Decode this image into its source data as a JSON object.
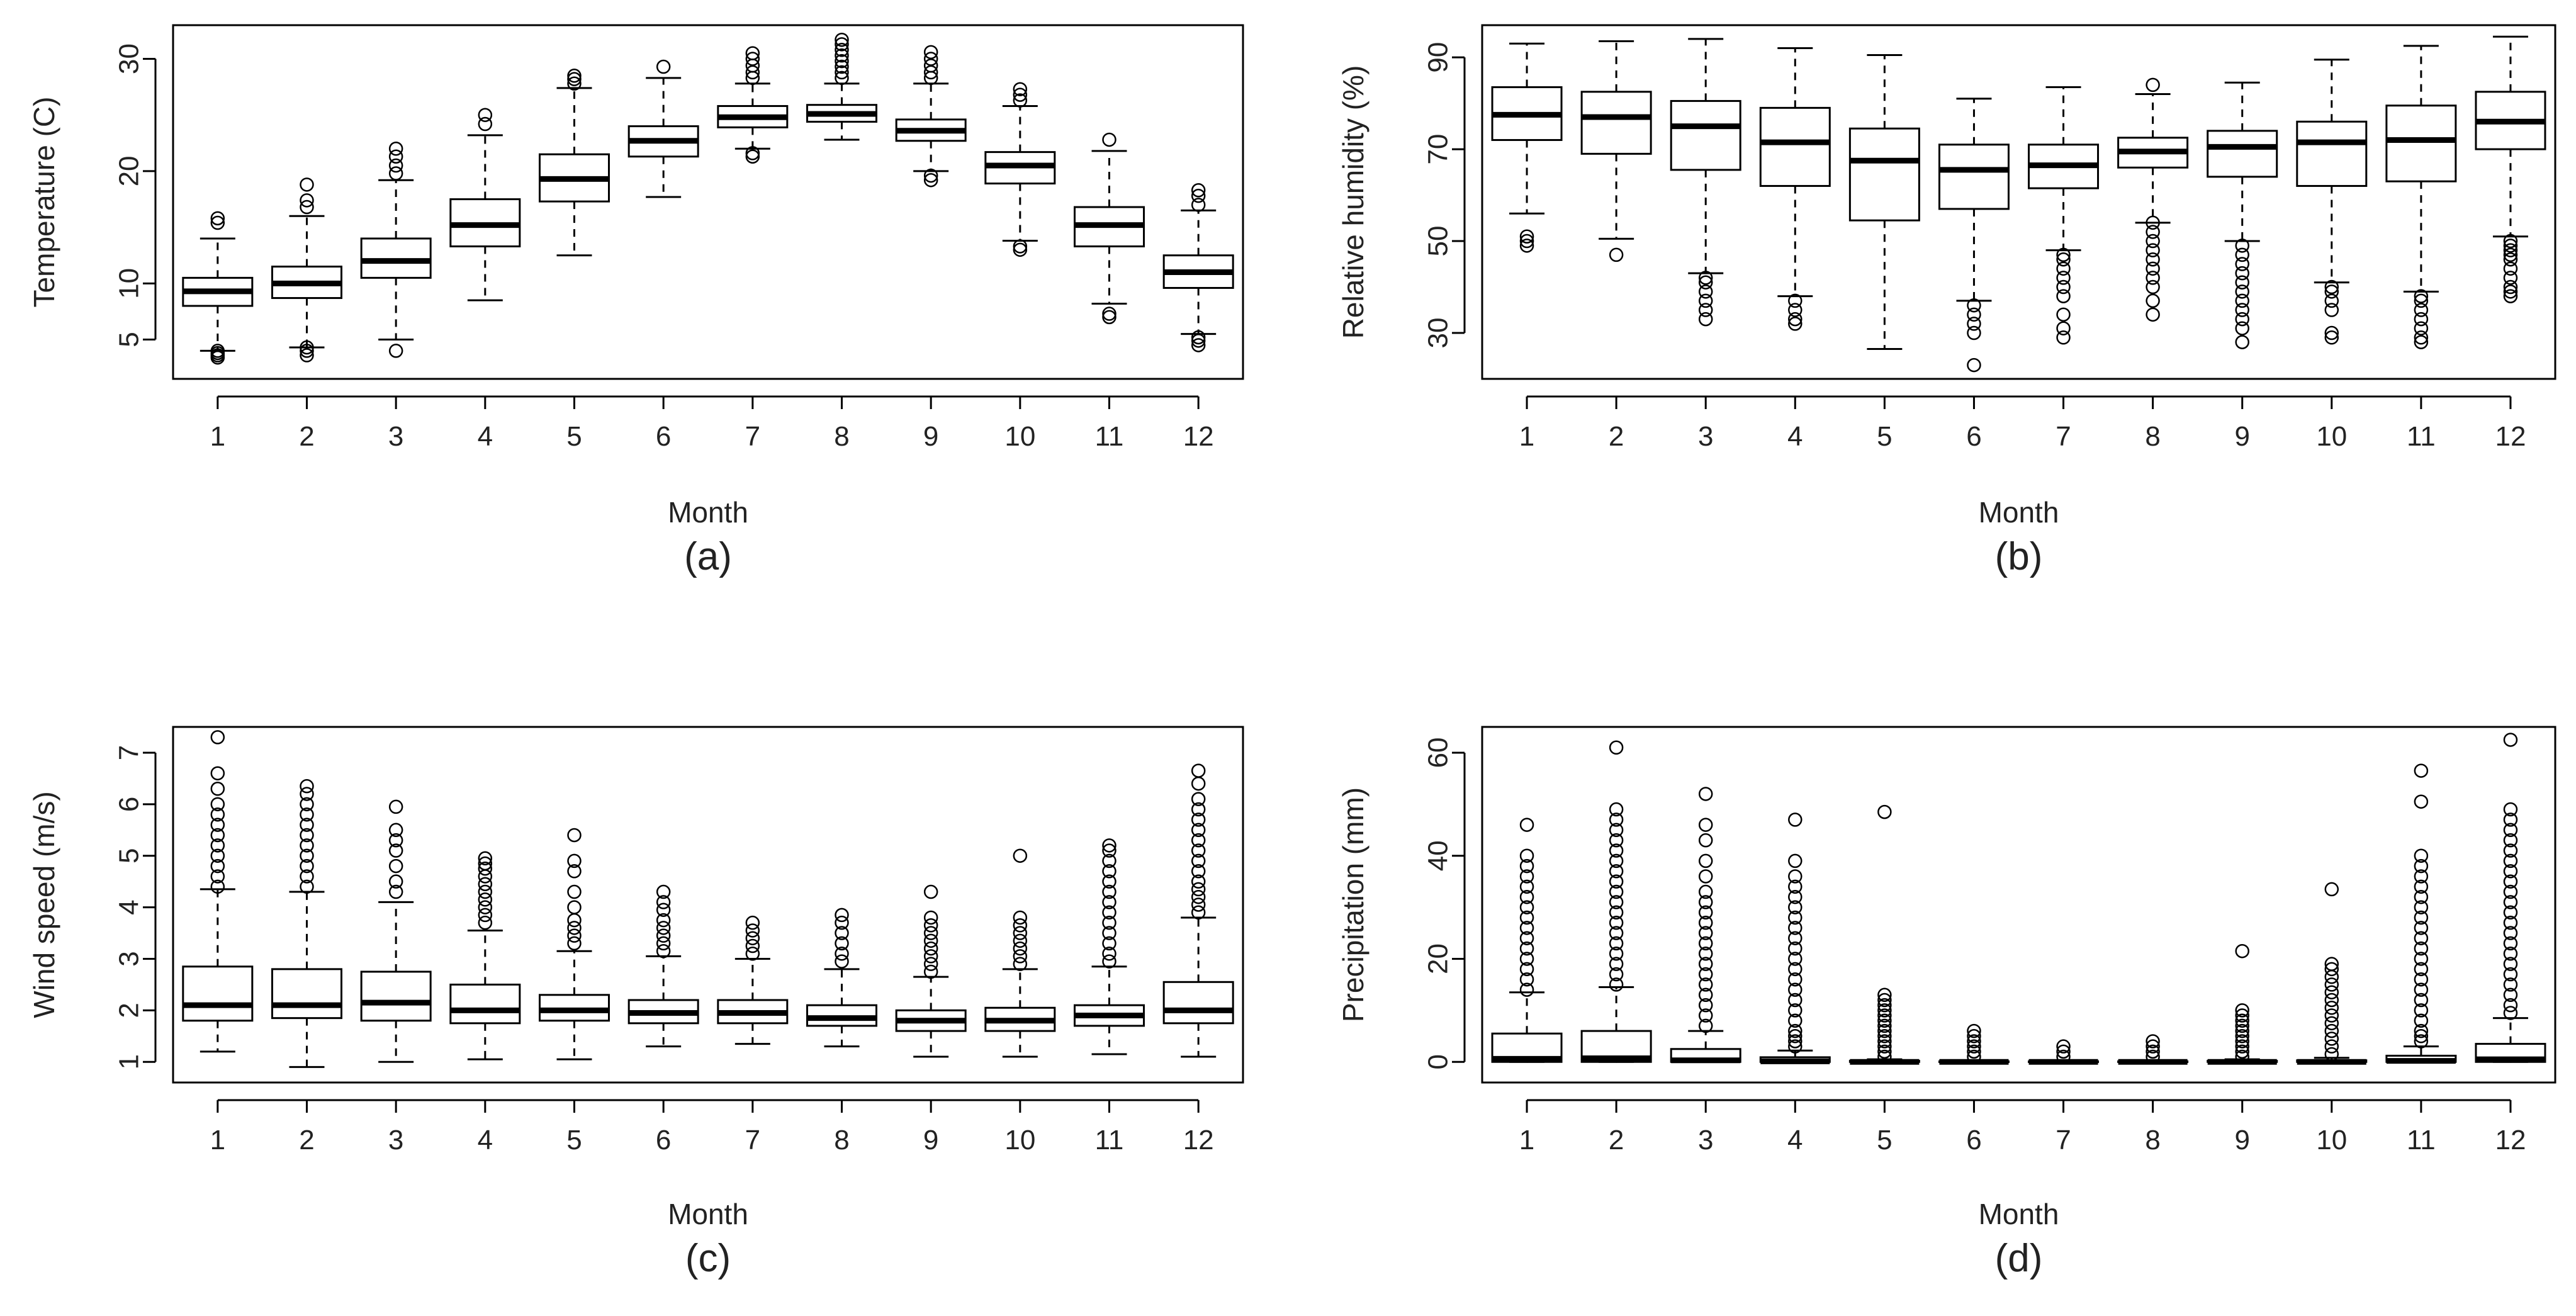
{
  "figure": {
    "months": [
      "1",
      "2",
      "3",
      "4",
      "5",
      "6",
      "7",
      "8",
      "9",
      "10",
      "11",
      "12"
    ]
  },
  "chart_data": [
    {
      "id": "a",
      "type": "boxplot",
      "panel_label": "(a)",
      "xlabel": "Month",
      "ylabel": "Temperature (C)",
      "ylim": [
        1.5,
        33
      ],
      "yticks": [
        5,
        10,
        20,
        30
      ],
      "categories": [
        "1",
        "2",
        "3",
        "4",
        "5",
        "6",
        "7",
        "8",
        "9",
        "10",
        "11",
        "12"
      ],
      "series": [
        {
          "q1": 8.0,
          "median": 9.3,
          "q3": 10.5,
          "whisker_low": 4.0,
          "whisker_high": 14.0,
          "outliers": [
            3.4,
            3.6,
            3.8,
            4.0,
            15.4,
            15.8
          ]
        },
        {
          "q1": 8.7,
          "median": 10.0,
          "q3": 11.5,
          "whisker_low": 4.3,
          "whisker_high": 16.0,
          "outliers": [
            3.6,
            4.0,
            4.3,
            16.8,
            17.4,
            18.8
          ]
        },
        {
          "q1": 10.5,
          "median": 12.0,
          "q3": 14.0,
          "whisker_low": 5.0,
          "whisker_high": 19.2,
          "outliers": [
            4.0,
            19.8,
            20.5,
            21.3,
            22.0
          ]
        },
        {
          "q1": 13.3,
          "median": 15.2,
          "q3": 17.5,
          "whisker_low": 8.5,
          "whisker_high": 23.2,
          "outliers": [
            24.2,
            25.0
          ]
        },
        {
          "q1": 17.3,
          "median": 19.3,
          "q3": 21.5,
          "whisker_low": 12.5,
          "whisker_high": 27.4,
          "outliers": [
            27.8,
            28.2,
            28.5
          ]
        },
        {
          "q1": 21.3,
          "median": 22.7,
          "q3": 24.0,
          "whisker_low": 17.7,
          "whisker_high": 28.3,
          "outliers": [
            29.3
          ]
        },
        {
          "q1": 23.9,
          "median": 24.8,
          "q3": 25.8,
          "whisker_low": 22.0,
          "whisker_high": 27.8,
          "outliers": [
            21.3,
            21.6,
            28.3,
            28.8,
            29.4,
            30.0,
            30.5
          ]
        },
        {
          "q1": 24.4,
          "median": 25.1,
          "q3": 25.9,
          "whisker_low": 22.8,
          "whisker_high": 27.8,
          "outliers": [
            28.3,
            28.8,
            29.3,
            29.8,
            30.3,
            30.8,
            31.3,
            31.7
          ]
        },
        {
          "q1": 22.7,
          "median": 23.6,
          "q3": 24.6,
          "whisker_low": 20.0,
          "whisker_high": 27.8,
          "outliers": [
            19.2,
            19.6,
            28.3,
            28.8,
            29.4,
            30.0,
            30.6
          ]
        },
        {
          "q1": 18.9,
          "median": 20.5,
          "q3": 21.7,
          "whisker_low": 13.8,
          "whisker_high": 25.8,
          "outliers": [
            13.0,
            13.3,
            26.3,
            26.8,
            27.3
          ]
        },
        {
          "q1": 13.3,
          "median": 15.2,
          "q3": 16.8,
          "whisker_low": 8.2,
          "whisker_high": 21.8,
          "outliers": [
            7.0,
            7.3,
            22.8
          ]
        },
        {
          "q1": 9.6,
          "median": 11.0,
          "q3": 12.5,
          "whisker_low": 5.5,
          "whisker_high": 16.5,
          "outliers": [
            4.5,
            4.9,
            5.2,
            17.0,
            17.8,
            18.3
          ]
        }
      ]
    },
    {
      "id": "b",
      "type": "boxplot",
      "panel_label": "(b)",
      "xlabel": "Month",
      "ylabel": "Relative humidity (%)",
      "ylim": [
        20,
        97
      ],
      "yticks": [
        30,
        50,
        70,
        90
      ],
      "categories": [
        "1",
        "2",
        "3",
        "4",
        "5",
        "6",
        "7",
        "8",
        "9",
        "10",
        "11",
        "12"
      ],
      "series": [
        {
          "q1": 72,
          "median": 77.5,
          "q3": 83.5,
          "whisker_low": 56,
          "whisker_high": 93,
          "outliers": [
            49,
            50,
            51
          ]
        },
        {
          "q1": 69,
          "median": 77,
          "q3": 82.5,
          "whisker_low": 50.5,
          "whisker_high": 93.5,
          "outliers": [
            47
          ]
        },
        {
          "q1": 65.5,
          "median": 75,
          "q3": 80.5,
          "whisker_low": 43,
          "whisker_high": 94,
          "outliers": [
            33,
            35,
            37,
            39,
            41,
            42
          ]
        },
        {
          "q1": 62,
          "median": 71.5,
          "q3": 79,
          "whisker_low": 38,
          "whisker_high": 92,
          "outliers": [
            32,
            33,
            35,
            37
          ]
        },
        {
          "q1": 54.5,
          "median": 67.5,
          "q3": 74.5,
          "whisker_low": 26.5,
          "whisker_high": 90.5,
          "outliers": []
        },
        {
          "q1": 57,
          "median": 65.5,
          "q3": 71,
          "whisker_low": 37,
          "whisker_high": 81,
          "outliers": [
            23,
            30,
            32,
            34,
            36
          ]
        },
        {
          "q1": 61.5,
          "median": 66.5,
          "q3": 71,
          "whisker_low": 48,
          "whisker_high": 83.5,
          "outliers": [
            29,
            31,
            34,
            38,
            40,
            42,
            44,
            46,
            47
          ]
        },
        {
          "q1": 66,
          "median": 69.5,
          "q3": 72.5,
          "whisker_low": 54,
          "whisker_high": 82,
          "outliers": [
            34,
            37,
            40,
            42,
            44,
            46,
            48,
            50,
            52,
            54,
            84
          ]
        },
        {
          "q1": 64,
          "median": 70.5,
          "q3": 74,
          "whisker_low": 50,
          "whisker_high": 84.5,
          "outliers": [
            28,
            31,
            33,
            35,
            37,
            39,
            41,
            43,
            45,
            47,
            49
          ]
        },
        {
          "q1": 62,
          "median": 71.5,
          "q3": 76,
          "whisker_low": 41,
          "whisker_high": 89.5,
          "outliers": [
            29,
            30,
            35,
            37,
            39,
            40
          ]
        },
        {
          "q1": 63,
          "median": 72,
          "q3": 79.5,
          "whisker_low": 39,
          "whisker_high": 92.5,
          "outliers": [
            28,
            29,
            31,
            33,
            35,
            37,
            38
          ]
        },
        {
          "q1": 70,
          "median": 76,
          "q3": 82.5,
          "whisker_low": 51,
          "whisker_high": 94.5,
          "outliers": [
            38,
            39,
            40,
            42,
            44,
            46,
            47,
            48,
            49,
            50
          ]
        }
      ]
    },
    {
      "id": "c",
      "type": "boxplot",
      "panel_label": "(c)",
      "xlabel": "Month",
      "ylabel": "Wind speed (m/s)",
      "ylim": [
        0.6,
        7.5
      ],
      "yticks": [
        1,
        2,
        3,
        4,
        5,
        6,
        7
      ],
      "categories": [
        "1",
        "2",
        "3",
        "4",
        "5",
        "6",
        "7",
        "8",
        "9",
        "10",
        "11",
        "12"
      ],
      "series": [
        {
          "q1": 1.8,
          "median": 2.1,
          "q3": 2.85,
          "whisker_low": 1.2,
          "whisker_high": 4.35,
          "outliers": [
            4.4,
            4.6,
            4.8,
            5.0,
            5.2,
            5.4,
            5.6,
            5.8,
            6.0,
            6.3,
            6.6,
            7.3
          ]
        },
        {
          "q1": 1.85,
          "median": 2.1,
          "q3": 2.8,
          "whisker_low": 0.9,
          "whisker_high": 4.3,
          "outliers": [
            4.4,
            4.6,
            4.8,
            5.0,
            5.2,
            5.4,
            5.6,
            5.8,
            6.0,
            6.2,
            6.35
          ]
        },
        {
          "q1": 1.8,
          "median": 2.15,
          "q3": 2.75,
          "whisker_low": 1.0,
          "whisker_high": 4.1,
          "outliers": [
            4.3,
            4.5,
            4.8,
            5.1,
            5.3,
            5.5,
            5.95
          ]
        },
        {
          "q1": 1.75,
          "median": 2.0,
          "q3": 2.5,
          "whisker_low": 1.05,
          "whisker_high": 3.55,
          "outliers": [
            3.7,
            3.85,
            4.0,
            4.15,
            4.3,
            4.45,
            4.6,
            4.75,
            4.85,
            4.95
          ]
        },
        {
          "q1": 1.8,
          "median": 2.0,
          "q3": 2.3,
          "whisker_low": 1.05,
          "whisker_high": 3.15,
          "outliers": [
            3.3,
            3.45,
            3.6,
            3.75,
            4.0,
            4.3,
            4.7,
            4.9,
            5.4
          ]
        },
        {
          "q1": 1.75,
          "median": 1.95,
          "q3": 2.2,
          "whisker_low": 1.3,
          "whisker_high": 3.05,
          "outliers": [
            3.15,
            3.3,
            3.45,
            3.6,
            3.75,
            3.95,
            4.1,
            4.3
          ]
        },
        {
          "q1": 1.75,
          "median": 1.95,
          "q3": 2.2,
          "whisker_low": 1.35,
          "whisker_high": 3.0,
          "outliers": [
            3.1,
            3.25,
            3.4,
            3.55,
            3.7
          ]
        },
        {
          "q1": 1.7,
          "median": 1.85,
          "q3": 2.1,
          "whisker_low": 1.3,
          "whisker_high": 2.8,
          "outliers": [
            2.95,
            3.1,
            3.3,
            3.5,
            3.7,
            3.85
          ]
        },
        {
          "q1": 1.6,
          "median": 1.8,
          "q3": 2.0,
          "whisker_low": 1.1,
          "whisker_high": 2.65,
          "outliers": [
            2.75,
            2.9,
            3.05,
            3.2,
            3.35,
            3.5,
            3.65,
            3.8,
            4.3
          ]
        },
        {
          "q1": 1.6,
          "median": 1.8,
          "q3": 2.05,
          "whisker_low": 1.1,
          "whisker_high": 2.8,
          "outliers": [
            2.9,
            3.05,
            3.2,
            3.35,
            3.5,
            3.65,
            3.8,
            5.0
          ]
        },
        {
          "q1": 1.7,
          "median": 1.9,
          "q3": 2.1,
          "whisker_low": 1.15,
          "whisker_high": 2.85,
          "outliers": [
            2.95,
            3.1,
            3.3,
            3.5,
            3.7,
            3.9,
            4.1,
            4.3,
            4.5,
            4.7,
            4.9,
            5.1,
            5.2
          ]
        },
        {
          "q1": 1.75,
          "median": 2.0,
          "q3": 2.55,
          "whisker_low": 1.1,
          "whisker_high": 3.8,
          "outliers": [
            3.9,
            4.05,
            4.2,
            4.35,
            4.5,
            4.7,
            4.9,
            5.1,
            5.3,
            5.5,
            5.7,
            5.9,
            6.1,
            6.4,
            6.65
          ]
        }
      ]
    },
    {
      "id": "d",
      "type": "boxplot",
      "panel_label": "(d)",
      "xlabel": "Month",
      "ylabel": "Precipitation (mm)",
      "ylim": [
        -4,
        65
      ],
      "yticks": [
        0,
        20,
        40,
        60
      ],
      "categories": [
        "1",
        "2",
        "3",
        "4",
        "5",
        "6",
        "7",
        "8",
        "9",
        "10",
        "11",
        "12"
      ],
      "series": [
        {
          "q1": 0,
          "median": 0.6,
          "q3": 5.5,
          "whisker_low": 0,
          "whisker_high": 13.5,
          "outliers": [
            14,
            16,
            18,
            20,
            22,
            24,
            26,
            28,
            30,
            32,
            34,
            36,
            38,
            40,
            46
          ]
        },
        {
          "q1": 0,
          "median": 0.7,
          "q3": 6.0,
          "whisker_low": 0,
          "whisker_high": 14.5,
          "outliers": [
            15,
            17,
            19,
            21,
            23,
            25,
            27,
            29,
            31,
            33,
            35,
            37,
            39,
            41,
            43,
            45,
            47,
            49,
            61
          ]
        },
        {
          "q1": 0,
          "median": 0.3,
          "q3": 2.5,
          "whisker_low": 0,
          "whisker_high": 6.0,
          "outliers": [
            7,
            9,
            11,
            13,
            15,
            17,
            19,
            21,
            23,
            25,
            27,
            29,
            31,
            33,
            36,
            39,
            43,
            46,
            52
          ]
        },
        {
          "q1": 0,
          "median": 0.1,
          "q3": 0.9,
          "whisker_low": 0,
          "whisker_high": 2.2,
          "outliers": [
            3,
            4,
            5,
            6,
            8,
            10,
            12,
            14,
            16,
            18,
            20,
            22,
            24,
            26,
            28,
            30,
            32,
            34,
            36,
            39,
            47
          ]
        },
        {
          "q1": 0,
          "median": 0,
          "q3": 0.2,
          "whisker_low": 0,
          "whisker_high": 0.5,
          "outliers": [
            1,
            2,
            3,
            4,
            5,
            6,
            7,
            8,
            9,
            10,
            11,
            12,
            13,
            48.5
          ]
        },
        {
          "q1": 0,
          "median": 0,
          "q3": 0.1,
          "whisker_low": 0,
          "whisker_high": 0.3,
          "outliers": [
            1,
            2,
            3,
            4,
            5,
            6
          ]
        },
        {
          "q1": 0,
          "median": 0,
          "q3": 0.1,
          "whisker_low": 0,
          "whisker_high": 0.3,
          "outliers": [
            1,
            2,
            3
          ]
        },
        {
          "q1": 0,
          "median": 0,
          "q3": 0.1,
          "whisker_low": 0,
          "whisker_high": 0.3,
          "outliers": [
            1,
            2,
            3,
            4
          ]
        },
        {
          "q1": 0,
          "median": 0,
          "q3": 0.2,
          "whisker_low": 0,
          "whisker_high": 0.5,
          "outliers": [
            1,
            2,
            3,
            4,
            5,
            6,
            7,
            8,
            9,
            10,
            21.5
          ]
        },
        {
          "q1": 0,
          "median": 0,
          "q3": 0.3,
          "whisker_low": 0,
          "whisker_high": 0.8,
          "outliers": [
            1.5,
            3,
            4.5,
            6,
            7.5,
            9,
            10.5,
            12,
            13.5,
            15,
            16.5,
            18,
            19,
            33.5
          ]
        },
        {
          "q1": 0,
          "median": 0.2,
          "q3": 1.2,
          "whisker_low": 0,
          "whisker_high": 3.0,
          "outliers": [
            4,
            5,
            6,
            8,
            10,
            12,
            14,
            16,
            18,
            20,
            22,
            24,
            26,
            28,
            30,
            32,
            34,
            36,
            38,
            40,
            50.5,
            56.5
          ]
        },
        {
          "q1": 0,
          "median": 0.5,
          "q3": 3.5,
          "whisker_low": 0,
          "whisker_high": 8.5,
          "outliers": [
            9.5,
            11,
            13,
            15,
            17,
            19,
            21,
            23,
            25,
            27,
            29,
            31,
            33,
            35,
            37,
            39,
            41,
            43,
            45,
            47,
            49,
            62.5
          ]
        }
      ]
    }
  ]
}
